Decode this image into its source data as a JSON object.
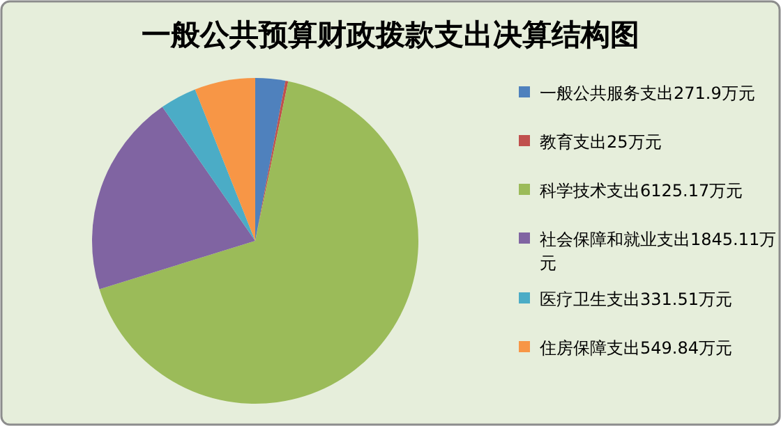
{
  "chart_data": {
    "type": "pie",
    "title": "一般公共预算财政拨款支出决算结构图",
    "categories": [
      "一般公共服务支出271.9万元",
      "教育支出25万元",
      "科学技术支出6125.17万元",
      "社会保障和就业支出1845.11万元",
      "医疗卫生支出331.51万元",
      "住房保障支出549.84万元"
    ],
    "values": [
      271.9,
      25,
      6125.17,
      1845.11,
      331.51,
      549.84
    ],
    "colors": [
      "#4f81bd",
      "#c0504d",
      "#9bbb59",
      "#8064a2",
      "#4bacc6",
      "#f79646"
    ],
    "legend": "right"
  }
}
